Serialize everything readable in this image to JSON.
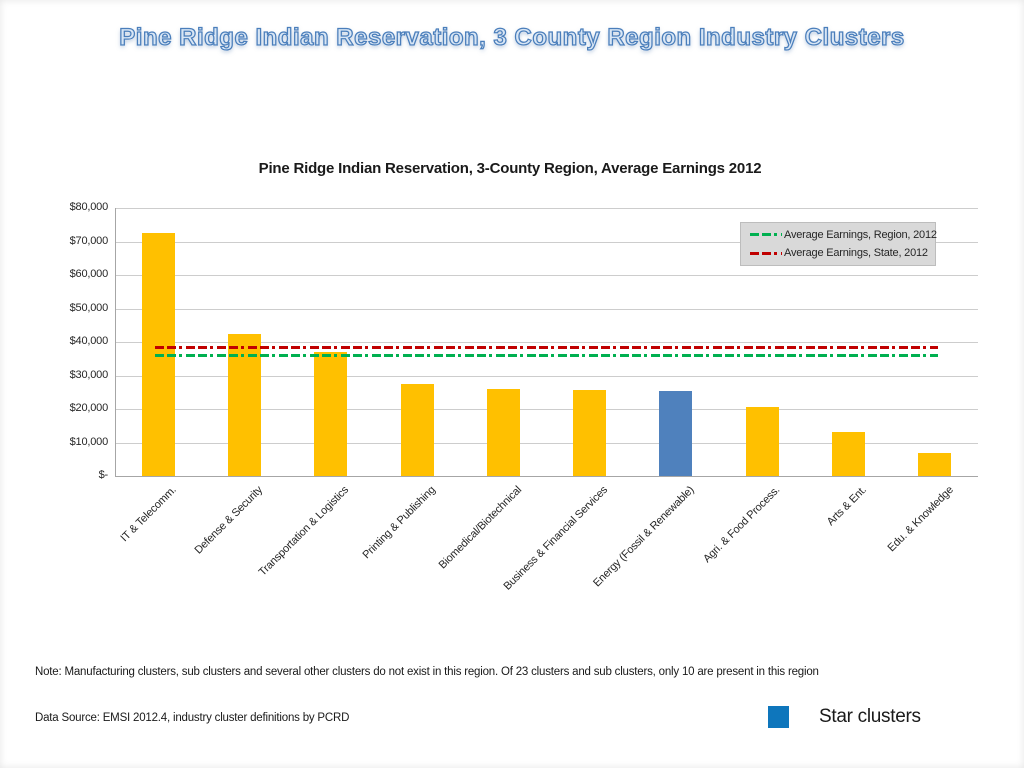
{
  "slide": {
    "title": "Pine Ridge Indian Reservation, 3 County Region Industry Clusters"
  },
  "chart_data": {
    "type": "bar",
    "title": "Pine Ridge Indian Reservation, 3-County Region, Average Earnings 2012",
    "categories": [
      "IT & Telecomm.",
      "Defense & Security",
      "Transportation & Logistics",
      "Printing & Publishing",
      "Biomedical/Biotechnical",
      "Business & Financial Services",
      "Energy (Fossil & Renewable)",
      "Agri. & Food Process.",
      "Arts & Ent.",
      "Edu. & Knowledge"
    ],
    "values": [
      72500,
      42500,
      37000,
      27500,
      26000,
      25700,
      25300,
      20500,
      13000,
      7000
    ],
    "bar_colors": [
      "#FFC000",
      "#FFC000",
      "#FFC000",
      "#FFC000",
      "#FFC000",
      "#FFC000",
      "#4F81BD",
      "#FFC000",
      "#FFC000",
      "#FFC000"
    ],
    "default_bar_color": "#FFC000",
    "highlight_bar_color": "#4F81BD",
    "ylim": [
      0,
      80000
    ],
    "ytick_labels": [
      "$80,000",
      "$70,000",
      "$60,000",
      "$50,000",
      "$40,000",
      "$30,000",
      "$20,000",
      "$10,000",
      "$-"
    ],
    "grid": true,
    "legend_position": "top-right-inside",
    "reference_lines": [
      {
        "label": "Average Earnings, Region, 2012",
        "value": 36000,
        "color": "#00B050",
        "style": "dash-dash-dot"
      },
      {
        "label": "Average Earnings, State, 2012",
        "value": 38500,
        "color": "#C00000",
        "style": "dash-dash-dot"
      }
    ]
  },
  "notes": {
    "region_note": "Note: Manufacturing clusters, sub clusters and several other clusters do not exist in this region. Of 23 clusters and sub clusters, only 10 are present in this region"
  },
  "footer": {
    "data_source": "Data Source: EMSI 2012.4, industry cluster definitions by PCRD",
    "star_clusters_label": "Star clusters",
    "star_swatch_color": "#0E76BC"
  }
}
